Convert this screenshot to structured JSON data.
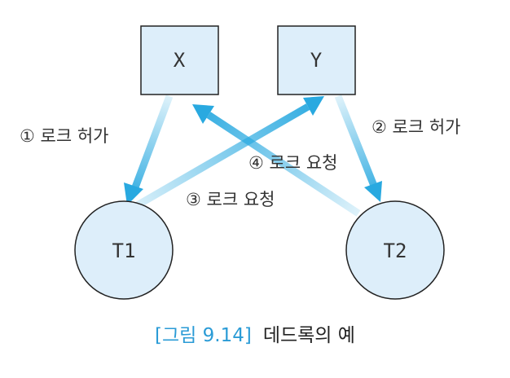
{
  "nodes": {
    "x": "X",
    "y": "Y",
    "t1": "T1",
    "t2": "T2"
  },
  "edges": {
    "e1": "① 로크 허가",
    "e2": "② 로크 허가",
    "e3": "③ 로크 요청",
    "e4": "④ 로크 요청"
  },
  "caption": {
    "number": "[그림 9.14]",
    "title": "데드록의 예"
  },
  "colors": {
    "node_fill": "#ddeefa",
    "node_stroke": "#222222",
    "arrow": "#29a9e0",
    "caption_accent": "#2a9bd6"
  }
}
